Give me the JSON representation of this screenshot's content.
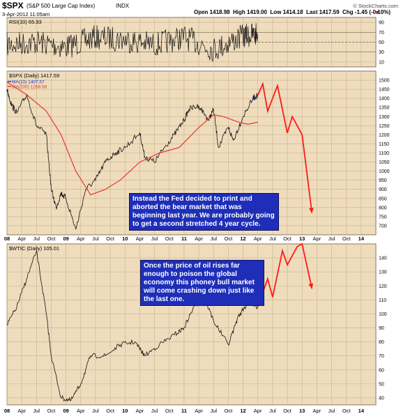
{
  "header": {
    "symbol": "$SPX",
    "name": "(S&P 500 Large Cap Index)",
    "exchange": "INDX",
    "date": "3-Apr-2012 11:05am",
    "quote_text": "Open 1418.98  High 1419.00  Low 1414.18  Last 1417.59  Chg -1.45 (-0.10%)",
    "credit": "© StockCharts.com"
  },
  "colors": {
    "background": "#eedcbd",
    "grid": "#c9b28c",
    "price_line": "#111111",
    "ma10": "#1c2fd0",
    "ma200": "#e23a2c",
    "projection": "#ff1a12",
    "annotation_bg": "#1e2eb8"
  },
  "x_axis": {
    "ticks": [
      "08",
      "Apr",
      "Jul",
      "Oct",
      "09",
      "Apr",
      "Jul",
      "Oct",
      "10",
      "Apr",
      "Jul",
      "Oct",
      "11",
      "Apr",
      "Jul",
      "Oct",
      "12",
      "Apr",
      "Jul",
      "Oct",
      "13",
      "Apr",
      "Jul",
      "Oct",
      "14"
    ],
    "bold_ticks": [
      "08",
      "09",
      "10",
      "11",
      "12",
      "13",
      "14"
    ]
  },
  "annotations": {
    "spx_note": "Instead the Fed decided to print and aborted the bear market that was beginning last year. We are probably going to get a second stretched 4 year cycle.",
    "oil_note": "Once the price of oil rises far enough to poison the global economy this phoney bull market will come crashing down just like the last one."
  },
  "chart_data": [
    {
      "type": "line",
      "panel": "rsi",
      "label": "RSI(10) 65.93",
      "ylim": [
        0,
        100
      ],
      "yticks": [
        10,
        30,
        50,
        70,
        90
      ],
      "reference_lines": [
        30,
        50,
        70
      ],
      "last_value": 65.93,
      "x": [
        "2008-01",
        "2008-07",
        "2009-01",
        "2009-07",
        "2010-01",
        "2010-07",
        "2011-01",
        "2011-07",
        "2012-01",
        "2012-04"
      ],
      "values": [
        45,
        50,
        40,
        60,
        55,
        45,
        60,
        35,
        62,
        66
      ]
    },
    {
      "type": "line",
      "panel": "spx",
      "label": "$SPX (Daily) 1417.59",
      "ylim": [
        650,
        1550
      ],
      "yticks": [
        700,
        750,
        800,
        850,
        900,
        950,
        1000,
        1050,
        1100,
        1150,
        1200,
        1250,
        1300,
        1350,
        1400,
        1450,
        1500
      ],
      "series": [
        {
          "name": "$SPX (Daily) 1417.59",
          "x": [
            "2008-01",
            "2008-02",
            "2008-03",
            "2008-05",
            "2008-07",
            "2008-09",
            "2008-10",
            "2008-11",
            "2008-12",
            "2009-01",
            "2009-03",
            "2009-05",
            "2009-07",
            "2009-09",
            "2009-11",
            "2010-01",
            "2010-04",
            "2010-05",
            "2010-07",
            "2010-09",
            "2010-11",
            "2011-01",
            "2011-02",
            "2011-04",
            "2011-06",
            "2011-07",
            "2011-08",
            "2011-10",
            "2011-11",
            "2012-01",
            "2012-03",
            "2012-04"
          ],
          "values": [
            1450,
            1360,
            1320,
            1420,
            1250,
            1200,
            900,
            800,
            880,
            850,
            680,
            900,
            950,
            1050,
            1100,
            1130,
            1210,
            1080,
            1050,
            1130,
            1200,
            1280,
            1340,
            1360,
            1280,
            1340,
            1130,
            1240,
            1170,
            1300,
            1400,
            1418
          ]
        },
        {
          "name": "MA(10) 1407.57",
          "x": [
            "2012-03",
            "2012-04"
          ],
          "values": [
            1395,
            1408
          ]
        },
        {
          "name": "MA(200) 1268.56",
          "x": [
            "2008-01",
            "2008-05",
            "2008-09",
            "2008-12",
            "2009-03",
            "2009-06",
            "2009-09",
            "2009-12",
            "2010-04",
            "2010-08",
            "2010-12",
            "2011-04",
            "2011-07",
            "2011-09",
            "2011-12",
            "2012-02",
            "2012-04"
          ],
          "values": [
            1490,
            1420,
            1330,
            1200,
            1000,
            870,
            900,
            950,
            1050,
            1100,
            1130,
            1240,
            1310,
            1300,
            1270,
            1258,
            1269
          ]
        },
        {
          "name": "projection",
          "x": [
            "2012-04",
            "2012-05",
            "2012-06",
            "2012-08",
            "2012-10",
            "2012-11",
            "2013-01",
            "2013-03"
          ],
          "values": [
            1418,
            1480,
            1330,
            1470,
            1210,
            1300,
            1200,
            770
          ]
        }
      ]
    },
    {
      "type": "line",
      "panel": "oil",
      "label": "$WTIC (Daily) 105.01",
      "ylim": [
        35,
        150
      ],
      "yticks": [
        40,
        50,
        60,
        70,
        80,
        90,
        100,
        110,
        120,
        130,
        140
      ],
      "series": [
        {
          "name": "$WTIC (Daily) 105.01",
          "x": [
            "2008-01",
            "2008-03",
            "2008-05",
            "2008-07",
            "2008-09",
            "2008-10",
            "2008-12",
            "2009-02",
            "2009-04",
            "2009-06",
            "2009-09",
            "2009-12",
            "2010-03",
            "2010-05",
            "2010-08",
            "2010-11",
            "2011-01",
            "2011-03",
            "2011-05",
            "2011-07",
            "2011-10",
            "2011-12",
            "2012-02",
            "2012-04"
          ],
          "values": [
            92,
            105,
            125,
            145,
            100,
            70,
            40,
            38,
            50,
            70,
            70,
            78,
            80,
            70,
            78,
            85,
            90,
            105,
            113,
            95,
            78,
            98,
            108,
            105
          ]
        },
        {
          "name": "projection",
          "x": [
            "2012-04",
            "2012-06",
            "2012-07",
            "2012-09",
            "2012-10",
            "2012-12",
            "2013-01",
            "2013-03"
          ],
          "values": [
            105,
            125,
            112,
            145,
            135,
            148,
            150,
            118
          ]
        }
      ]
    }
  ]
}
